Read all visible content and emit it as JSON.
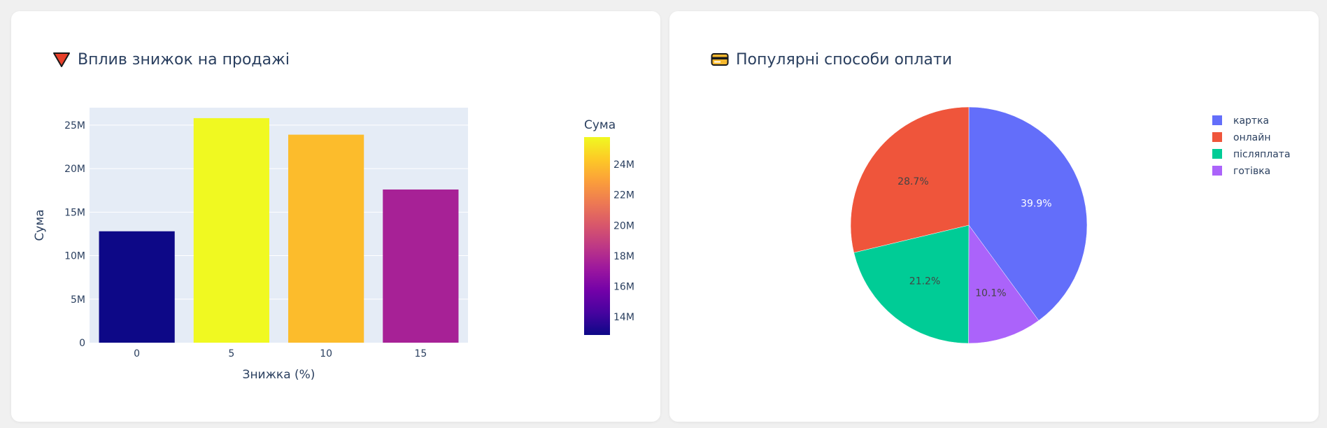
{
  "cards": {
    "discounts": {
      "title": "Вплив знижок на продажі",
      "icon": "red-triangle-down-icon"
    },
    "payments": {
      "title": "Популярні способи оплати",
      "icon": "credit-card-icon"
    }
  },
  "colors": {
    "plot_bg": "#e5ecf6",
    "text": "#2a3f5f",
    "grid": "#ffffff",
    "colorscale": [
      "#0d0887",
      "#46039f",
      "#7201a8",
      "#9c179e",
      "#bd3786",
      "#d8576b",
      "#ed7953",
      "#fb9f3a",
      "#fdca26",
      "#f0f921"
    ]
  },
  "chart_data": [
    {
      "type": "bar",
      "xlabel": "Знижка (%)",
      "ylabel": "Сума",
      "categories": [
        "0",
        "5",
        "10",
        "15"
      ],
      "values": [
        12800000,
        25800000,
        23900000,
        17600000
      ],
      "ylim": [
        0,
        27000000
      ],
      "yticks": [
        0,
        5000000,
        10000000,
        15000000,
        20000000,
        25000000
      ],
      "ytick_labels": [
        "0",
        "5M",
        "10M",
        "15M",
        "20M",
        "25M"
      ],
      "grid": true,
      "colorbar": {
        "title": "Сума",
        "range": [
          12800000,
          25800000
        ],
        "ticks": [
          14000000,
          16000000,
          18000000,
          20000000,
          22000000,
          24000000
        ],
        "tick_labels": [
          "14M",
          "16M",
          "18M",
          "20M",
          "22M",
          "24M"
        ]
      }
    },
    {
      "type": "pie",
      "labels": [
        "картка",
        "онлайн",
        "післяплата",
        "готівка"
      ],
      "values": [
        39.9,
        28.7,
        21.2,
        10.1
      ],
      "value_labels": [
        "39.9%",
        "28.7%",
        "21.2%",
        "10.1%"
      ],
      "colors": [
        "#636efa",
        "#ef553b",
        "#00cc96",
        "#ab63fa"
      ],
      "slice_order": [
        "картка",
        "готівка",
        "післяплата",
        "онлайн"
      ],
      "direction": "clockwise",
      "legend_position": "top-right"
    }
  ]
}
